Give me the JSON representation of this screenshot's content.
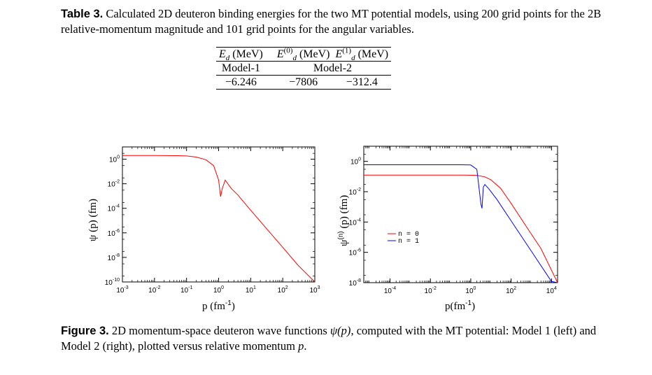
{
  "table": {
    "label": "Table 3.",
    "caption": "Calculated 2D deuteron binding energies for the two MT potential models, using 200 grid points for the 2B relative-momentum magnitude and 101 grid points for the angular variables.",
    "headers": [
      "E",
      "d",
      " (MeV)",
      "E",
      "(0)",
      "d",
      " (MeV)",
      "E",
      "(1)",
      "d",
      " (MeV)"
    ],
    "models": [
      "Model-1",
      "Model-2"
    ],
    "values": [
      "−6.246",
      "−7806",
      "−312.4"
    ]
  },
  "figure": {
    "label": "Figure 3.",
    "caption_parts": [
      "2D momentum-space deuteron wave functions ",
      "ψ(p)",
      ", computed with the MT potential: Model 1 (left) and Model 2 (right), plotted versus relative momentum ",
      "p",
      "."
    ]
  },
  "chart_data": [
    {
      "type": "line",
      "title": "",
      "xlabel": "p (fm⁻¹)",
      "ylabel": "ψ (p) (fm)",
      "xscale": "log",
      "yscale": "log",
      "xlim": [
        0.001,
        1000
      ],
      "ylim": [
        1e-10,
        10
      ],
      "xticks": [
        "10^-3",
        "10^-2",
        "10^-1",
        "10^0",
        "10^1",
        "10^2",
        "10^3"
      ],
      "yticks": [
        "10^-10",
        "10^-8",
        "10^-6",
        "10^-4",
        "10^-2",
        "10^0"
      ],
      "legend": "none",
      "series": [
        {
          "color": "#ff0000",
          "x": [
            0.001,
            0.01,
            0.05,
            0.1,
            0.2,
            0.4,
            0.7,
            1.0,
            1.15,
            1.3,
            1.6,
            2.5,
            4,
            10,
            30,
            100,
            300,
            1000
          ],
          "y": [
            2.0,
            2.0,
            1.95,
            1.85,
            1.5,
            0.9,
            0.3,
            0.02,
            0.0009,
            0.004,
            0.02,
            0.004,
            0.0012,
            7e-05,
            2.5e-06,
            6.5e-08,
            2.3e-09,
            5e-11
          ]
        }
      ]
    },
    {
      "type": "line",
      "title": "",
      "xlabel": "p(fm⁻¹)",
      "ylabel": "ψ(n) (p) (fm)",
      "xscale": "log",
      "yscale": "log",
      "xlim": [
        5e-06,
        20000
      ],
      "ylim": [
        1e-08,
        10
      ],
      "xticks": [
        "10^-4",
        "10^-2",
        "10^0",
        "10^2",
        "10^4"
      ],
      "yticks": [
        "10^-8",
        "10^-6",
        "10^-4",
        "10^-2",
        "10^0"
      ],
      "legend": "center-left",
      "series": [
        {
          "name": "n = 0",
          "color": "#ff0000",
          "x": [
            5e-06,
            0.0001,
            0.01,
            0.5,
            2,
            5,
            10,
            30,
            100,
            1000,
            3000,
            20000
          ],
          "y": [
            0.125,
            0.125,
            0.125,
            0.125,
            0.12,
            0.095,
            0.06,
            0.017,
            0.0017,
            1.6e-05,
            1.8e-06,
            1e-08
          ]
        },
        {
          "name": "n = 1",
          "color": "#0000ff",
          "x": [
            5e-06,
            0.0001,
            0.01,
            0.3,
            1,
            2,
            3.2,
            3.6,
            4.2,
            5,
            8,
            20,
            100,
            1000,
            10000,
            20000
          ],
          "y": [
            0.6,
            0.6,
            0.6,
            0.6,
            0.58,
            0.3,
            0.0015,
            0.0008,
            0.02,
            0.03,
            0.015,
            0.003,
            0.00012,
            1.2e-06,
            1.2e-08,
            3e-09
          ]
        }
      ]
    }
  ]
}
